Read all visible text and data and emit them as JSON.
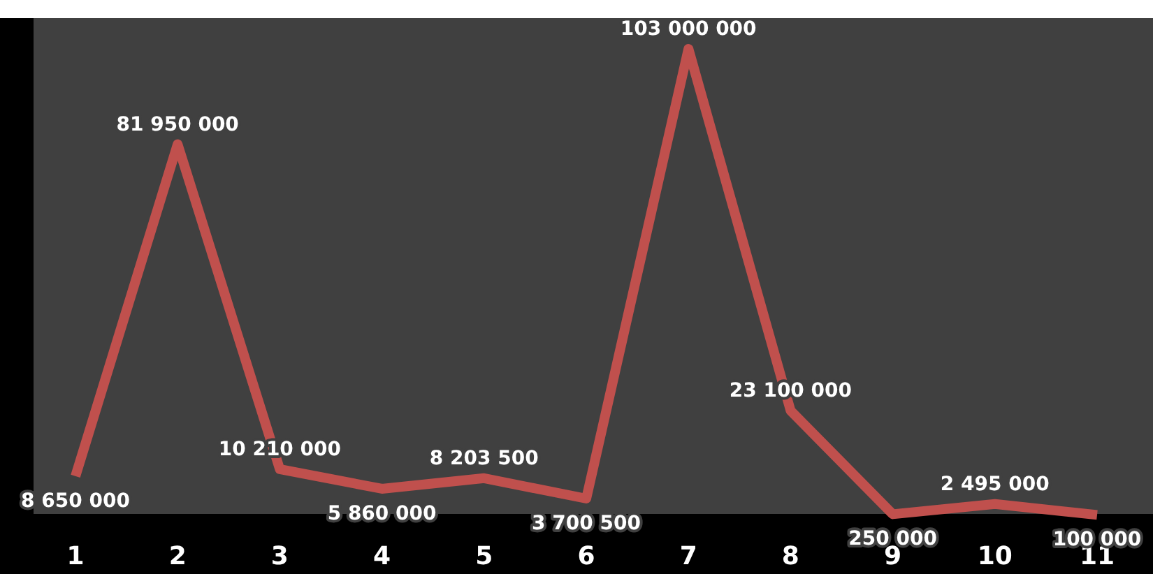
{
  "chart_data": {
    "type": "line",
    "categories": [
      "1",
      "2",
      "3",
      "4",
      "5",
      "6",
      "7",
      "8",
      "9",
      "10",
      "11"
    ],
    "series": [
      {
        "color": "#c0504d",
        "values": [
          8650000,
          81950000,
          10210000,
          5860000,
          8203500,
          3700500,
          103000000,
          23100000,
          250000,
          2495000,
          100000
        ],
        "value_labels": [
          "8 650 000",
          "81 950 000",
          "10 210 000",
          "5 860 000",
          "8 203 500",
          "3 700 500",
          "103 000 000",
          "23 100 000",
          "250 000",
          "2 495 000",
          "100 000"
        ]
      }
    ],
    "marker": "none",
    "line_style": "solid",
    "tick_labels": "x"
  }
}
